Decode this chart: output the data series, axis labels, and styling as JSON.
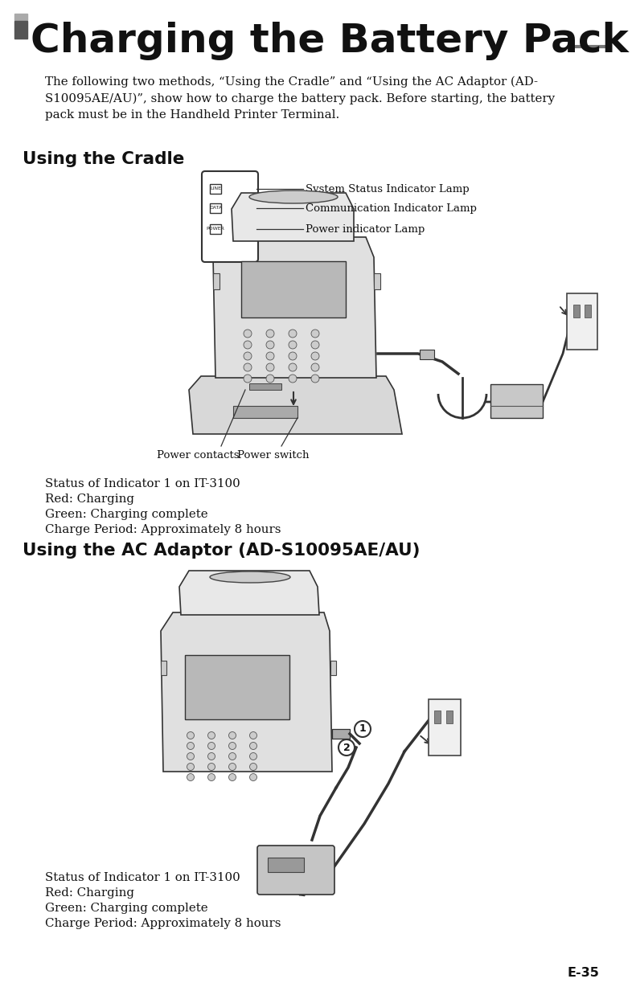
{
  "page_number": "E-35",
  "background_color": "#ffffff",
  "title": "Charging the Battery Pack",
  "title_fontsize": 36,
  "title_color": "#111111",
  "intro_text": "The following two methods, “Using the Cradle” and “Using the AC Adaptor (AD-\nS10095AE/AU)”, show how to charge the battery pack. Before starting, the battery\npack must be in the Handheld Printer Terminal.",
  "section1_title": "Using the Cradle",
  "section2_title": "Using the AC Adaptor (AD-S10095AE/AU)",
  "cradle_labels": [
    "System Status Indicator Lamp",
    "Communication Indicator Lamp",
    "Power indicator Lamp"
  ],
  "cradle_sublabels": [
    "LINE",
    "DATA",
    "POWER"
  ],
  "bottom_labels": [
    "Power contacts",
    "Power switch"
  ],
  "status_lines": [
    "Status of Indicator 1 on IT-3100",
    "Red: Charging",
    "Green: Charging complete",
    "Charge Period: Approximately 8 hours"
  ],
  "label_numbers": [
    "1",
    "2"
  ],
  "sq1_color": "#aaaaaa",
  "sq2_color": "#555555",
  "text_color": "#111111",
  "line_color": "#222222"
}
